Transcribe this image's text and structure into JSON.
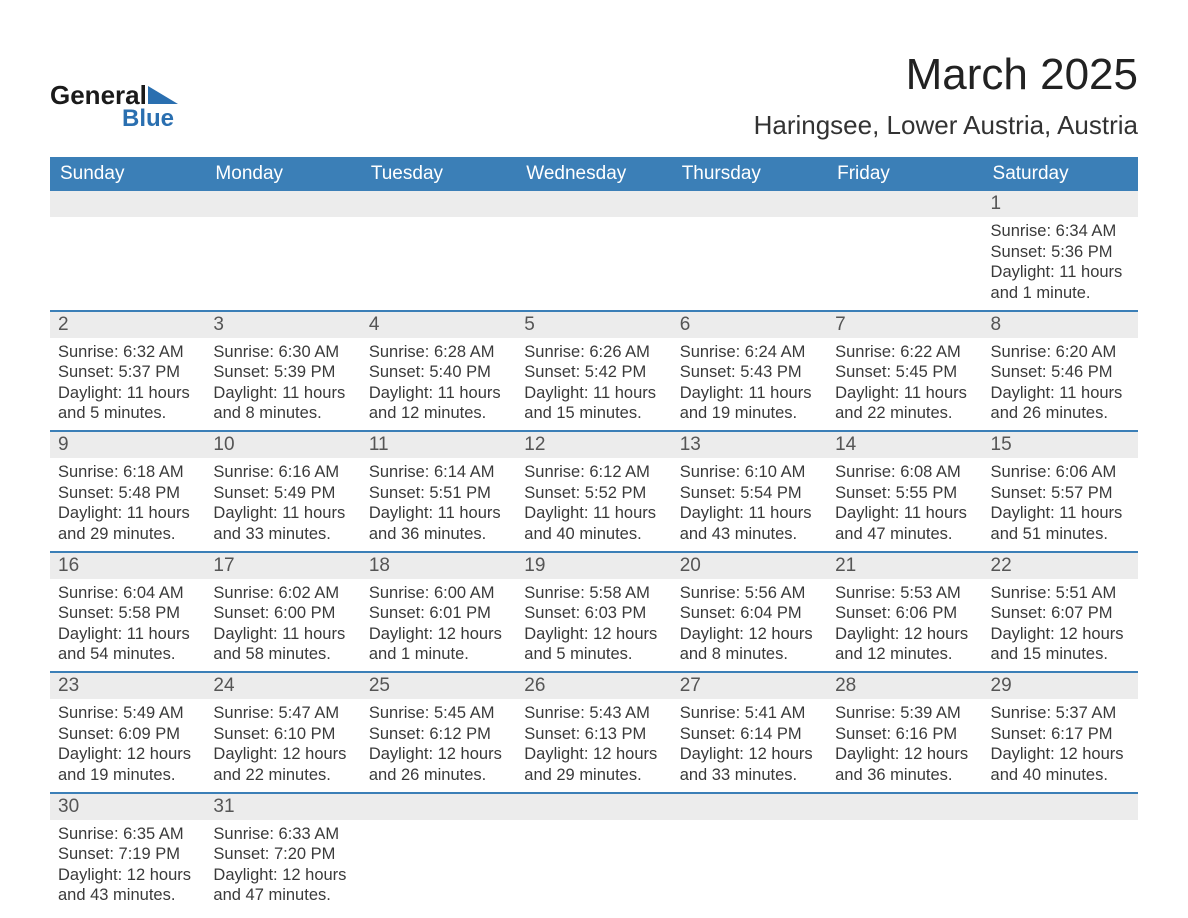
{
  "colors": {
    "header_bg": "#3b7fb7",
    "header_text": "#ffffff",
    "daynum_bg": "#ececec",
    "row_divider": "#3b7fb7",
    "page_bg": "#ffffff",
    "text": "#3a3a3a",
    "title_text": "#222222"
  },
  "typography": {
    "month_title_fontsize": 44,
    "location_fontsize": 26,
    "weekday_fontsize": 19,
    "daynum_fontsize": 19,
    "cell_fontsize": 16.5,
    "font_family": "Arial"
  },
  "logo": {
    "line1": "General",
    "line2": "Blue",
    "line1_color": "#1a1a1a",
    "line2_color": "#2a6fb0",
    "triangle_color": "#2a6fb0"
  },
  "header": {
    "month_title": "March 2025",
    "location": "Haringsee, Lower Austria, Austria"
  },
  "calendar": {
    "weekdays": [
      "Sunday",
      "Monday",
      "Tuesday",
      "Wednesday",
      "Thursday",
      "Friday",
      "Saturday"
    ],
    "columns": 7,
    "weeks": [
      [
        null,
        null,
        null,
        null,
        null,
        null,
        {
          "day": "1",
          "sunrise": "Sunrise: 6:34 AM",
          "sunset": "Sunset: 5:36 PM",
          "daylight": "Daylight: 11 hours and 1 minute."
        }
      ],
      [
        {
          "day": "2",
          "sunrise": "Sunrise: 6:32 AM",
          "sunset": "Sunset: 5:37 PM",
          "daylight": "Daylight: 11 hours and 5 minutes."
        },
        {
          "day": "3",
          "sunrise": "Sunrise: 6:30 AM",
          "sunset": "Sunset: 5:39 PM",
          "daylight": "Daylight: 11 hours and 8 minutes."
        },
        {
          "day": "4",
          "sunrise": "Sunrise: 6:28 AM",
          "sunset": "Sunset: 5:40 PM",
          "daylight": "Daylight: 11 hours and 12 minutes."
        },
        {
          "day": "5",
          "sunrise": "Sunrise: 6:26 AM",
          "sunset": "Sunset: 5:42 PM",
          "daylight": "Daylight: 11 hours and 15 minutes."
        },
        {
          "day": "6",
          "sunrise": "Sunrise: 6:24 AM",
          "sunset": "Sunset: 5:43 PM",
          "daylight": "Daylight: 11 hours and 19 minutes."
        },
        {
          "day": "7",
          "sunrise": "Sunrise: 6:22 AM",
          "sunset": "Sunset: 5:45 PM",
          "daylight": "Daylight: 11 hours and 22 minutes."
        },
        {
          "day": "8",
          "sunrise": "Sunrise: 6:20 AM",
          "sunset": "Sunset: 5:46 PM",
          "daylight": "Daylight: 11 hours and 26 minutes."
        }
      ],
      [
        {
          "day": "9",
          "sunrise": "Sunrise: 6:18 AM",
          "sunset": "Sunset: 5:48 PM",
          "daylight": "Daylight: 11 hours and 29 minutes."
        },
        {
          "day": "10",
          "sunrise": "Sunrise: 6:16 AM",
          "sunset": "Sunset: 5:49 PM",
          "daylight": "Daylight: 11 hours and 33 minutes."
        },
        {
          "day": "11",
          "sunrise": "Sunrise: 6:14 AM",
          "sunset": "Sunset: 5:51 PM",
          "daylight": "Daylight: 11 hours and 36 minutes."
        },
        {
          "day": "12",
          "sunrise": "Sunrise: 6:12 AM",
          "sunset": "Sunset: 5:52 PM",
          "daylight": "Daylight: 11 hours and 40 minutes."
        },
        {
          "day": "13",
          "sunrise": "Sunrise: 6:10 AM",
          "sunset": "Sunset: 5:54 PM",
          "daylight": "Daylight: 11 hours and 43 minutes."
        },
        {
          "day": "14",
          "sunrise": "Sunrise: 6:08 AM",
          "sunset": "Sunset: 5:55 PM",
          "daylight": "Daylight: 11 hours and 47 minutes."
        },
        {
          "day": "15",
          "sunrise": "Sunrise: 6:06 AM",
          "sunset": "Sunset: 5:57 PM",
          "daylight": "Daylight: 11 hours and 51 minutes."
        }
      ],
      [
        {
          "day": "16",
          "sunrise": "Sunrise: 6:04 AM",
          "sunset": "Sunset: 5:58 PM",
          "daylight": "Daylight: 11 hours and 54 minutes."
        },
        {
          "day": "17",
          "sunrise": "Sunrise: 6:02 AM",
          "sunset": "Sunset: 6:00 PM",
          "daylight": "Daylight: 11 hours and 58 minutes."
        },
        {
          "day": "18",
          "sunrise": "Sunrise: 6:00 AM",
          "sunset": "Sunset: 6:01 PM",
          "daylight": "Daylight: 12 hours and 1 minute."
        },
        {
          "day": "19",
          "sunrise": "Sunrise: 5:58 AM",
          "sunset": "Sunset: 6:03 PM",
          "daylight": "Daylight: 12 hours and 5 minutes."
        },
        {
          "day": "20",
          "sunrise": "Sunrise: 5:56 AM",
          "sunset": "Sunset: 6:04 PM",
          "daylight": "Daylight: 12 hours and 8 minutes."
        },
        {
          "day": "21",
          "sunrise": "Sunrise: 5:53 AM",
          "sunset": "Sunset: 6:06 PM",
          "daylight": "Daylight: 12 hours and 12 minutes."
        },
        {
          "day": "22",
          "sunrise": "Sunrise: 5:51 AM",
          "sunset": "Sunset: 6:07 PM",
          "daylight": "Daylight: 12 hours and 15 minutes."
        }
      ],
      [
        {
          "day": "23",
          "sunrise": "Sunrise: 5:49 AM",
          "sunset": "Sunset: 6:09 PM",
          "daylight": "Daylight: 12 hours and 19 minutes."
        },
        {
          "day": "24",
          "sunrise": "Sunrise: 5:47 AM",
          "sunset": "Sunset: 6:10 PM",
          "daylight": "Daylight: 12 hours and 22 minutes."
        },
        {
          "day": "25",
          "sunrise": "Sunrise: 5:45 AM",
          "sunset": "Sunset: 6:12 PM",
          "daylight": "Daylight: 12 hours and 26 minutes."
        },
        {
          "day": "26",
          "sunrise": "Sunrise: 5:43 AM",
          "sunset": "Sunset: 6:13 PM",
          "daylight": "Daylight: 12 hours and 29 minutes."
        },
        {
          "day": "27",
          "sunrise": "Sunrise: 5:41 AM",
          "sunset": "Sunset: 6:14 PM",
          "daylight": "Daylight: 12 hours and 33 minutes."
        },
        {
          "day": "28",
          "sunrise": "Sunrise: 5:39 AM",
          "sunset": "Sunset: 6:16 PM",
          "daylight": "Daylight: 12 hours and 36 minutes."
        },
        {
          "day": "29",
          "sunrise": "Sunrise: 5:37 AM",
          "sunset": "Sunset: 6:17 PM",
          "daylight": "Daylight: 12 hours and 40 minutes."
        }
      ],
      [
        {
          "day": "30",
          "sunrise": "Sunrise: 6:35 AM",
          "sunset": "Sunset: 7:19 PM",
          "daylight": "Daylight: 12 hours and 43 minutes."
        },
        {
          "day": "31",
          "sunrise": "Sunrise: 6:33 AM",
          "sunset": "Sunset: 7:20 PM",
          "daylight": "Daylight: 12 hours and 47 minutes."
        },
        null,
        null,
        null,
        null,
        null
      ]
    ]
  }
}
